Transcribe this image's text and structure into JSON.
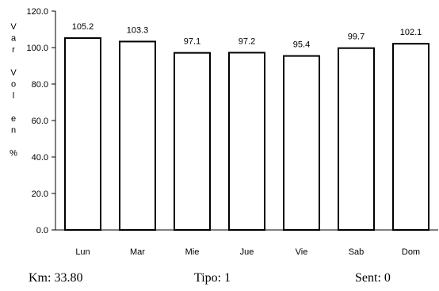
{
  "chart_data": {
    "type": "bar",
    "categories": [
      "Lun",
      "Mar",
      "Mie",
      "Jue",
      "Vie",
      "Sab",
      "Dom"
    ],
    "values": [
      105.2,
      103.3,
      97.1,
      97.2,
      95.4,
      99.7,
      102.1
    ],
    "value_labels": [
      "105.2",
      "103.3",
      "97.1",
      "97.2",
      "95.4",
      "99.7",
      "102.1"
    ],
    "ylabel": "Var Vol en %",
    "ylabel_lines": [
      "V",
      "a",
      "r",
      "",
      "V",
      "o",
      "l",
      "",
      "e",
      "n",
      "",
      "%"
    ],
    "ylim": [
      0,
      120
    ],
    "yticks": [
      "0.0",
      "20.0",
      "40.0",
      "60.0",
      "80.0",
      "100.0",
      "120.0"
    ],
    "title": "",
    "xlabel": "",
    "grid": false,
    "bar_fill": "#ffffff",
    "bar_stroke": "#000000"
  },
  "footer": {
    "km": "Km: 33.80",
    "tipo": "Tipo: 1",
    "sent": "Sent: 0"
  }
}
